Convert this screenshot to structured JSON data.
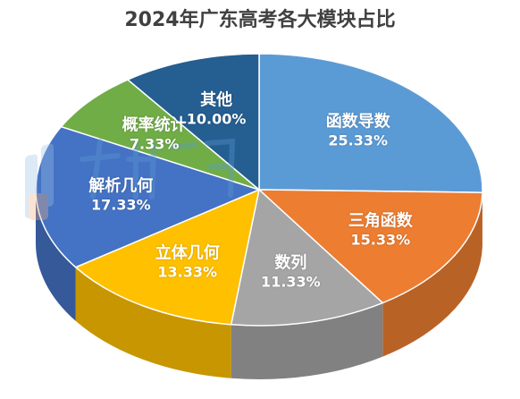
{
  "chart_data": {
    "type": "pie",
    "title": "2024年广东高考各大模块占比",
    "slices": [
      {
        "label": "函数导数",
        "value": 25.33,
        "value_label": "25.33%",
        "color": "#5B9BD5"
      },
      {
        "label": "三角函数",
        "value": 15.33,
        "value_label": "15.33%",
        "color": "#ED7D31"
      },
      {
        "label": "数列",
        "value": 11.33,
        "value_label": "11.33%",
        "color": "#A5A5A5"
      },
      {
        "label": "立体几何",
        "value": 13.33,
        "value_label": "13.33%",
        "color": "#FFC000"
      },
      {
        "label": "解析几何",
        "value": 17.33,
        "value_label": "17.33%",
        "color": "#4472C4"
      },
      {
        "label": "概率统计",
        "value": 7.33,
        "value_label": "7.33%",
        "color": "#70AD47"
      },
      {
        "label": "其他",
        "value": 10.0,
        "value_label": "10.00%",
        "color": "#255E91"
      }
    ],
    "legend": "none",
    "style": "3d"
  }
}
